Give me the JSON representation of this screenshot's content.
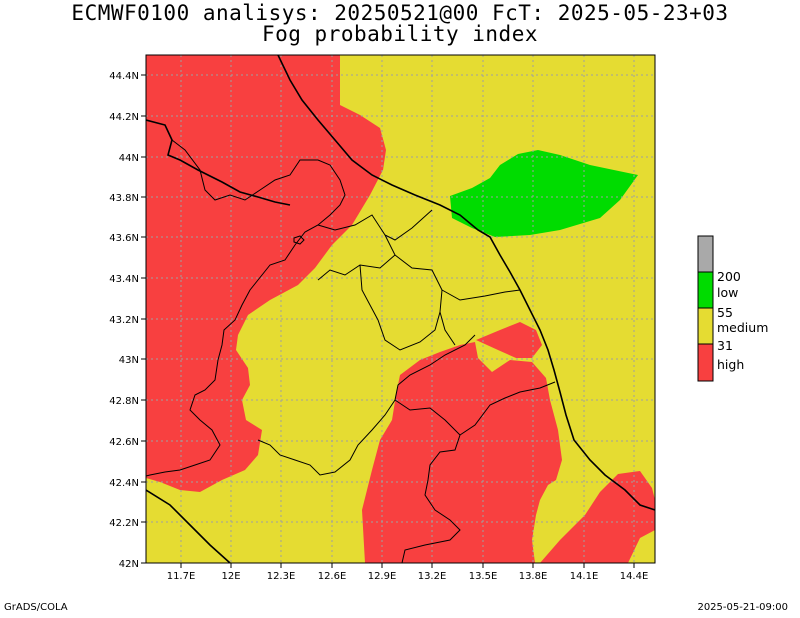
{
  "title_line1": "ECMWF0100 analisys: 20250521@00 FcT: 2025-05-23+03",
  "title_line2": "Fog probability index",
  "lat_ticks": [
    "44.4N",
    "44.2N",
    "44N",
    "43.8N",
    "43.6N",
    "43.4N",
    "43.2N",
    "43N",
    "42.8N",
    "42.6N",
    "42.4N",
    "42.2N",
    "42N"
  ],
  "lon_ticks": [
    "11.7E",
    "12E",
    "12.3E",
    "12.6E",
    "12.9E",
    "13.2E",
    "13.5E",
    "13.8E",
    "14.1E",
    "14.4E"
  ],
  "legend": {
    "thresholds": [
      "200",
      "55",
      "31"
    ],
    "classes": [
      "low",
      "medium",
      "high"
    ],
    "colors": {
      "top": "#a9a9a9",
      "low": "#00dc00",
      "medium": "#e5dc32",
      "high": "#f84040"
    }
  },
  "footer_left": "GrADS/COLA",
  "footer_right": "2025-05-21-09:00"
}
